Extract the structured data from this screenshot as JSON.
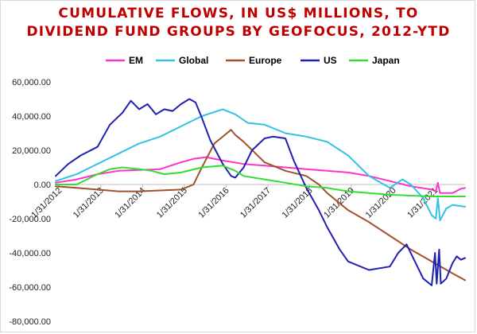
{
  "chart_data": {
    "type": "line",
    "title_lines": [
      "CUMULATIVE FLOWS, IN US$ MILLIONS, TO",
      "DIVIDEND FUND GROUPS BY GEOFOCUS, 2012-YTD"
    ],
    "xlabel": "",
    "ylabel": "",
    "ylim": [
      -80000,
      60000
    ],
    "y_ticks": [
      60000,
      40000,
      20000,
      0,
      -20000,
      -40000,
      -60000,
      -80000
    ],
    "y_tick_labels": [
      "60,000.00",
      "40,000.00",
      "20,000.00",
      "0.00",
      "-20,000.00",
      "-40,000.00",
      "-60,000.00",
      "-80,000.00"
    ],
    "x_range": [
      2012.0,
      2021.8
    ],
    "x_ticks": [
      2012.08,
      2013.08,
      2014.08,
      2015.08,
      2016.08,
      2017.08,
      2018.08,
      2019.08,
      2020.08,
      2021.08
    ],
    "x_tick_labels": [
      "1/31/2012",
      "1/31/2013",
      "1/31/2014",
      "1/31/2015",
      "1/31/2016",
      "1/31/2017",
      "1/31/2018",
      "1/31/2019",
      "1/31/2020",
      "1/31/2021"
    ],
    "grid": false,
    "legend_position": "top",
    "series": [
      {
        "name": "EM",
        "color": "#ff33cc",
        "points": [
          [
            2012.0,
            1000
          ],
          [
            2012.5,
            3000
          ],
          [
            2013.0,
            6000
          ],
          [
            2013.5,
            8000
          ],
          [
            2014.0,
            8500
          ],
          [
            2014.5,
            9000
          ],
          [
            2015.0,
            13000
          ],
          [
            2015.3,
            15000
          ],
          [
            2015.6,
            16000
          ],
          [
            2016.0,
            14000
          ],
          [
            2016.5,
            12000
          ],
          [
            2017.0,
            11000
          ],
          [
            2017.5,
            10000
          ],
          [
            2018.0,
            9000
          ],
          [
            2018.5,
            8000
          ],
          [
            2019.0,
            7000
          ],
          [
            2019.5,
            5000
          ],
          [
            2020.0,
            2000
          ],
          [
            2020.5,
            -1000
          ],
          [
            2021.0,
            -3000
          ],
          [
            2021.1,
            -4000
          ],
          [
            2021.15,
            1000
          ],
          [
            2021.2,
            -5000
          ],
          [
            2021.5,
            -5000
          ],
          [
            2021.7,
            -2500
          ],
          [
            2021.8,
            -2000
          ]
        ]
      },
      {
        "name": "Global",
        "color": "#33c1e6",
        "points": [
          [
            2012.0,
            2000
          ],
          [
            2012.5,
            6000
          ],
          [
            2013.0,
            12000
          ],
          [
            2013.5,
            18000
          ],
          [
            2014.0,
            24000
          ],
          [
            2014.5,
            28000
          ],
          [
            2015.0,
            34000
          ],
          [
            2015.5,
            40000
          ],
          [
            2016.0,
            44000
          ],
          [
            2016.3,
            41000
          ],
          [
            2016.6,
            36000
          ],
          [
            2017.0,
            35000
          ],
          [
            2017.5,
            30000
          ],
          [
            2018.0,
            28000
          ],
          [
            2018.5,
            25000
          ],
          [
            2019.0,
            17000
          ],
          [
            2019.5,
            5000
          ],
          [
            2020.0,
            -2000
          ],
          [
            2020.3,
            3000
          ],
          [
            2020.5,
            0
          ],
          [
            2020.8,
            -8000
          ],
          [
            2021.0,
            -18000
          ],
          [
            2021.1,
            -20000
          ],
          [
            2021.15,
            -8000
          ],
          [
            2021.2,
            -21000
          ],
          [
            2021.35,
            -14000
          ],
          [
            2021.5,
            -12000
          ],
          [
            2021.8,
            -13000
          ]
        ]
      },
      {
        "name": "Europe",
        "color": "#a0522d",
        "points": [
          [
            2012.0,
            -1000
          ],
          [
            2012.5,
            -2000
          ],
          [
            2013.0,
            -3000
          ],
          [
            2013.5,
            -4000
          ],
          [
            2014.0,
            -4000
          ],
          [
            2014.5,
            -3500
          ],
          [
            2015.0,
            -3000
          ],
          [
            2015.3,
            0
          ],
          [
            2015.5,
            10000
          ],
          [
            2015.8,
            24000
          ],
          [
            2016.2,
            32000
          ],
          [
            2016.3,
            29000
          ],
          [
            2016.5,
            25000
          ],
          [
            2017.0,
            13000
          ],
          [
            2017.5,
            8000
          ],
          [
            2018.0,
            5000
          ],
          [
            2018.3,
            0
          ],
          [
            2018.5,
            -5000
          ],
          [
            2019.0,
            -15000
          ],
          [
            2019.5,
            -22000
          ],
          [
            2020.0,
            -30000
          ],
          [
            2020.5,
            -38000
          ],
          [
            2021.0,
            -45000
          ],
          [
            2021.5,
            -52000
          ],
          [
            2021.8,
            -56000
          ]
        ]
      },
      {
        "name": "US",
        "color": "#2020b0",
        "points": [
          [
            2012.0,
            5000
          ],
          [
            2012.3,
            12000
          ],
          [
            2012.6,
            17000
          ],
          [
            2013.0,
            22000
          ],
          [
            2013.3,
            35000
          ],
          [
            2013.6,
            42000
          ],
          [
            2013.8,
            49000
          ],
          [
            2014.0,
            44000
          ],
          [
            2014.2,
            47000
          ],
          [
            2014.4,
            41000
          ],
          [
            2014.6,
            44000
          ],
          [
            2014.8,
            43000
          ],
          [
            2015.0,
            47000
          ],
          [
            2015.2,
            50000
          ],
          [
            2015.35,
            48000
          ],
          [
            2015.5,
            39000
          ],
          [
            2015.7,
            26000
          ],
          [
            2016.0,
            12000
          ],
          [
            2016.2,
            5000
          ],
          [
            2016.3,
            4000
          ],
          [
            2016.5,
            10000
          ],
          [
            2016.7,
            20000
          ],
          [
            2017.0,
            27000
          ],
          [
            2017.2,
            28000
          ],
          [
            2017.5,
            27000
          ],
          [
            2017.7,
            14000
          ],
          [
            2018.0,
            -2000
          ],
          [
            2018.3,
            -15000
          ],
          [
            2018.5,
            -25000
          ],
          [
            2018.8,
            -38000
          ],
          [
            2019.0,
            -45000
          ],
          [
            2019.5,
            -50000
          ],
          [
            2020.0,
            -48000
          ],
          [
            2020.2,
            -40000
          ],
          [
            2020.4,
            -35000
          ],
          [
            2020.6,
            -45000
          ],
          [
            2020.8,
            -55000
          ],
          [
            2021.0,
            -59000
          ],
          [
            2021.08,
            -40000
          ],
          [
            2021.12,
            -58000
          ],
          [
            2021.18,
            -38000
          ],
          [
            2021.22,
            -58000
          ],
          [
            2021.35,
            -55000
          ],
          [
            2021.5,
            -46000
          ],
          [
            2021.6,
            -42000
          ],
          [
            2021.7,
            -44000
          ],
          [
            2021.8,
            -43000
          ]
        ]
      },
      {
        "name": "Japan",
        "color": "#33dd33",
        "points": [
          [
            2012.0,
            0
          ],
          [
            2012.5,
            0
          ],
          [
            2013.0,
            6000
          ],
          [
            2013.3,
            9000
          ],
          [
            2013.6,
            10000
          ],
          [
            2014.0,
            9000
          ],
          [
            2014.3,
            8000
          ],
          [
            2014.6,
            6000
          ],
          [
            2015.0,
            7000
          ],
          [
            2015.5,
            10000
          ],
          [
            2016.0,
            11000
          ],
          [
            2016.3,
            8000
          ],
          [
            2016.5,
            5000
          ],
          [
            2017.0,
            3000
          ],
          [
            2017.5,
            1000
          ],
          [
            2018.0,
            -1000
          ],
          [
            2018.5,
            -2000
          ],
          [
            2019.0,
            -4000
          ],
          [
            2019.5,
            -5000
          ],
          [
            2020.0,
            -6000
          ],
          [
            2020.5,
            -6500
          ],
          [
            2021.0,
            -7000
          ],
          [
            2021.5,
            -7000
          ],
          [
            2021.8,
            -7000
          ]
        ]
      }
    ]
  }
}
